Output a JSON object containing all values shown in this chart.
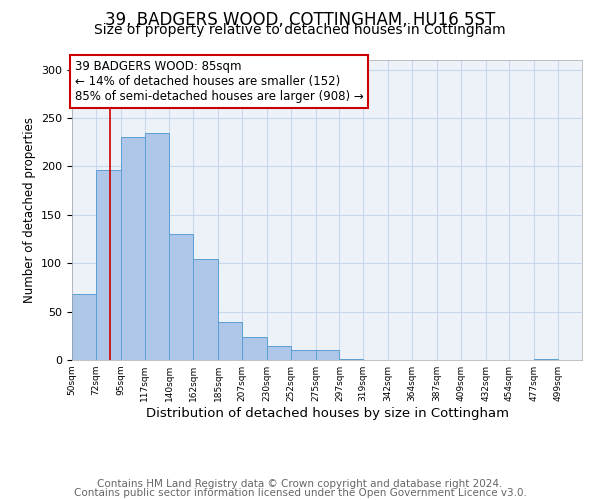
{
  "title": "39, BADGERS WOOD, COTTINGHAM, HU16 5ST",
  "subtitle": "Size of property relative to detached houses in Cottingham",
  "xlabel": "Distribution of detached houses by size in Cottingham",
  "ylabel": "Number of detached properties",
  "bar_left_edges": [
    50,
    72,
    95,
    117,
    140,
    162,
    185,
    207,
    230,
    252,
    275,
    297,
    319,
    342,
    364,
    387,
    409,
    432,
    454,
    477
  ],
  "bar_widths": [
    22,
    23,
    22,
    23,
    22,
    23,
    22,
    23,
    22,
    23,
    22,
    22,
    23,
    22,
    23,
    22,
    23,
    22,
    23,
    22
  ],
  "bar_heights": [
    68,
    196,
    230,
    235,
    130,
    104,
    39,
    24,
    14,
    10,
    10,
    1,
    0,
    0,
    0,
    0,
    0,
    0,
    0,
    1
  ],
  "bar_color": "#aec6e8",
  "bar_edgecolor": "#5a9fd4",
  "tick_labels": [
    "50sqm",
    "72sqm",
    "95sqm",
    "117sqm",
    "140sqm",
    "162sqm",
    "185sqm",
    "207sqm",
    "230sqm",
    "252sqm",
    "275sqm",
    "297sqm",
    "319sqm",
    "342sqm",
    "364sqm",
    "387sqm",
    "409sqm",
    "432sqm",
    "454sqm",
    "477sqm",
    "499sqm"
  ],
  "property_line_x": 85,
  "property_line_color": "#cc0000",
  "annotation_line1": "39 BADGERS WOOD: 85sqm",
  "annotation_line2": "← 14% of detached houses are smaller (152)",
  "annotation_line3": "85% of semi-detached houses are larger (908) →",
  "ylim": [
    0,
    310
  ],
  "yticks": [
    0,
    50,
    100,
    150,
    200,
    250,
    300
  ],
  "grid_color": "#c8d8ea",
  "background_color": "#edf2f9",
  "footer_line1": "Contains HM Land Registry data © Crown copyright and database right 2024.",
  "footer_line2": "Contains public sector information licensed under the Open Government Licence v3.0.",
  "title_fontsize": 12,
  "subtitle_fontsize": 10,
  "xlabel_fontsize": 9.5,
  "ylabel_fontsize": 8.5,
  "footer_fontsize": 7.5,
  "annotation_fontsize": 8.5
}
